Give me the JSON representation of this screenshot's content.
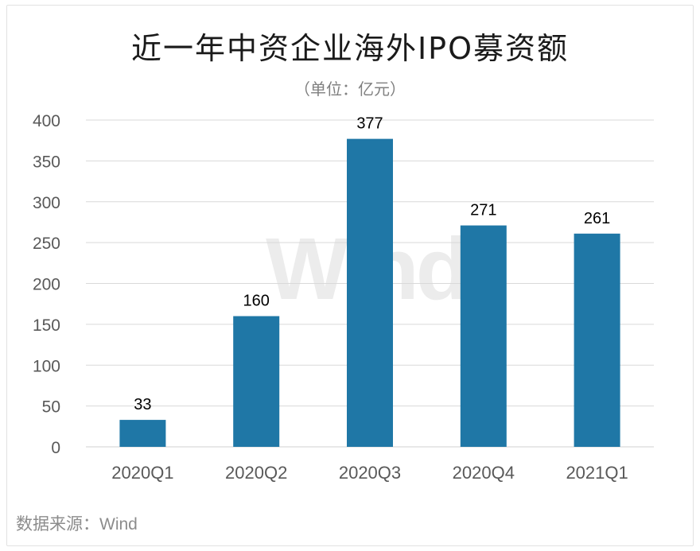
{
  "title": "近一年中资企业海外IPO募资额",
  "subtitle": "（单位：亿元）",
  "source": "数据来源：Wind",
  "watermark": "Wind",
  "colors": {
    "bar": "#1f77a6",
    "grid": "#d9d9d9",
    "axis_text": "#595959",
    "label_text": "#000000"
  },
  "chart_data": {
    "type": "bar",
    "title": "近一年中资企业海外IPO募资额",
    "subtitle": "（单位：亿元）",
    "categories": [
      "2020Q1",
      "2020Q2",
      "2020Q3",
      "2020Q4",
      "2021Q1"
    ],
    "values": [
      33,
      160,
      377,
      271,
      261
    ],
    "data_labels": [
      "33",
      "160",
      "377",
      "271",
      "261"
    ],
    "y_ticks": [
      "0",
      "50",
      "100",
      "150",
      "200",
      "250",
      "300",
      "350",
      "400"
    ],
    "ylim": [
      0,
      400
    ],
    "grid": true,
    "legend": "none"
  }
}
